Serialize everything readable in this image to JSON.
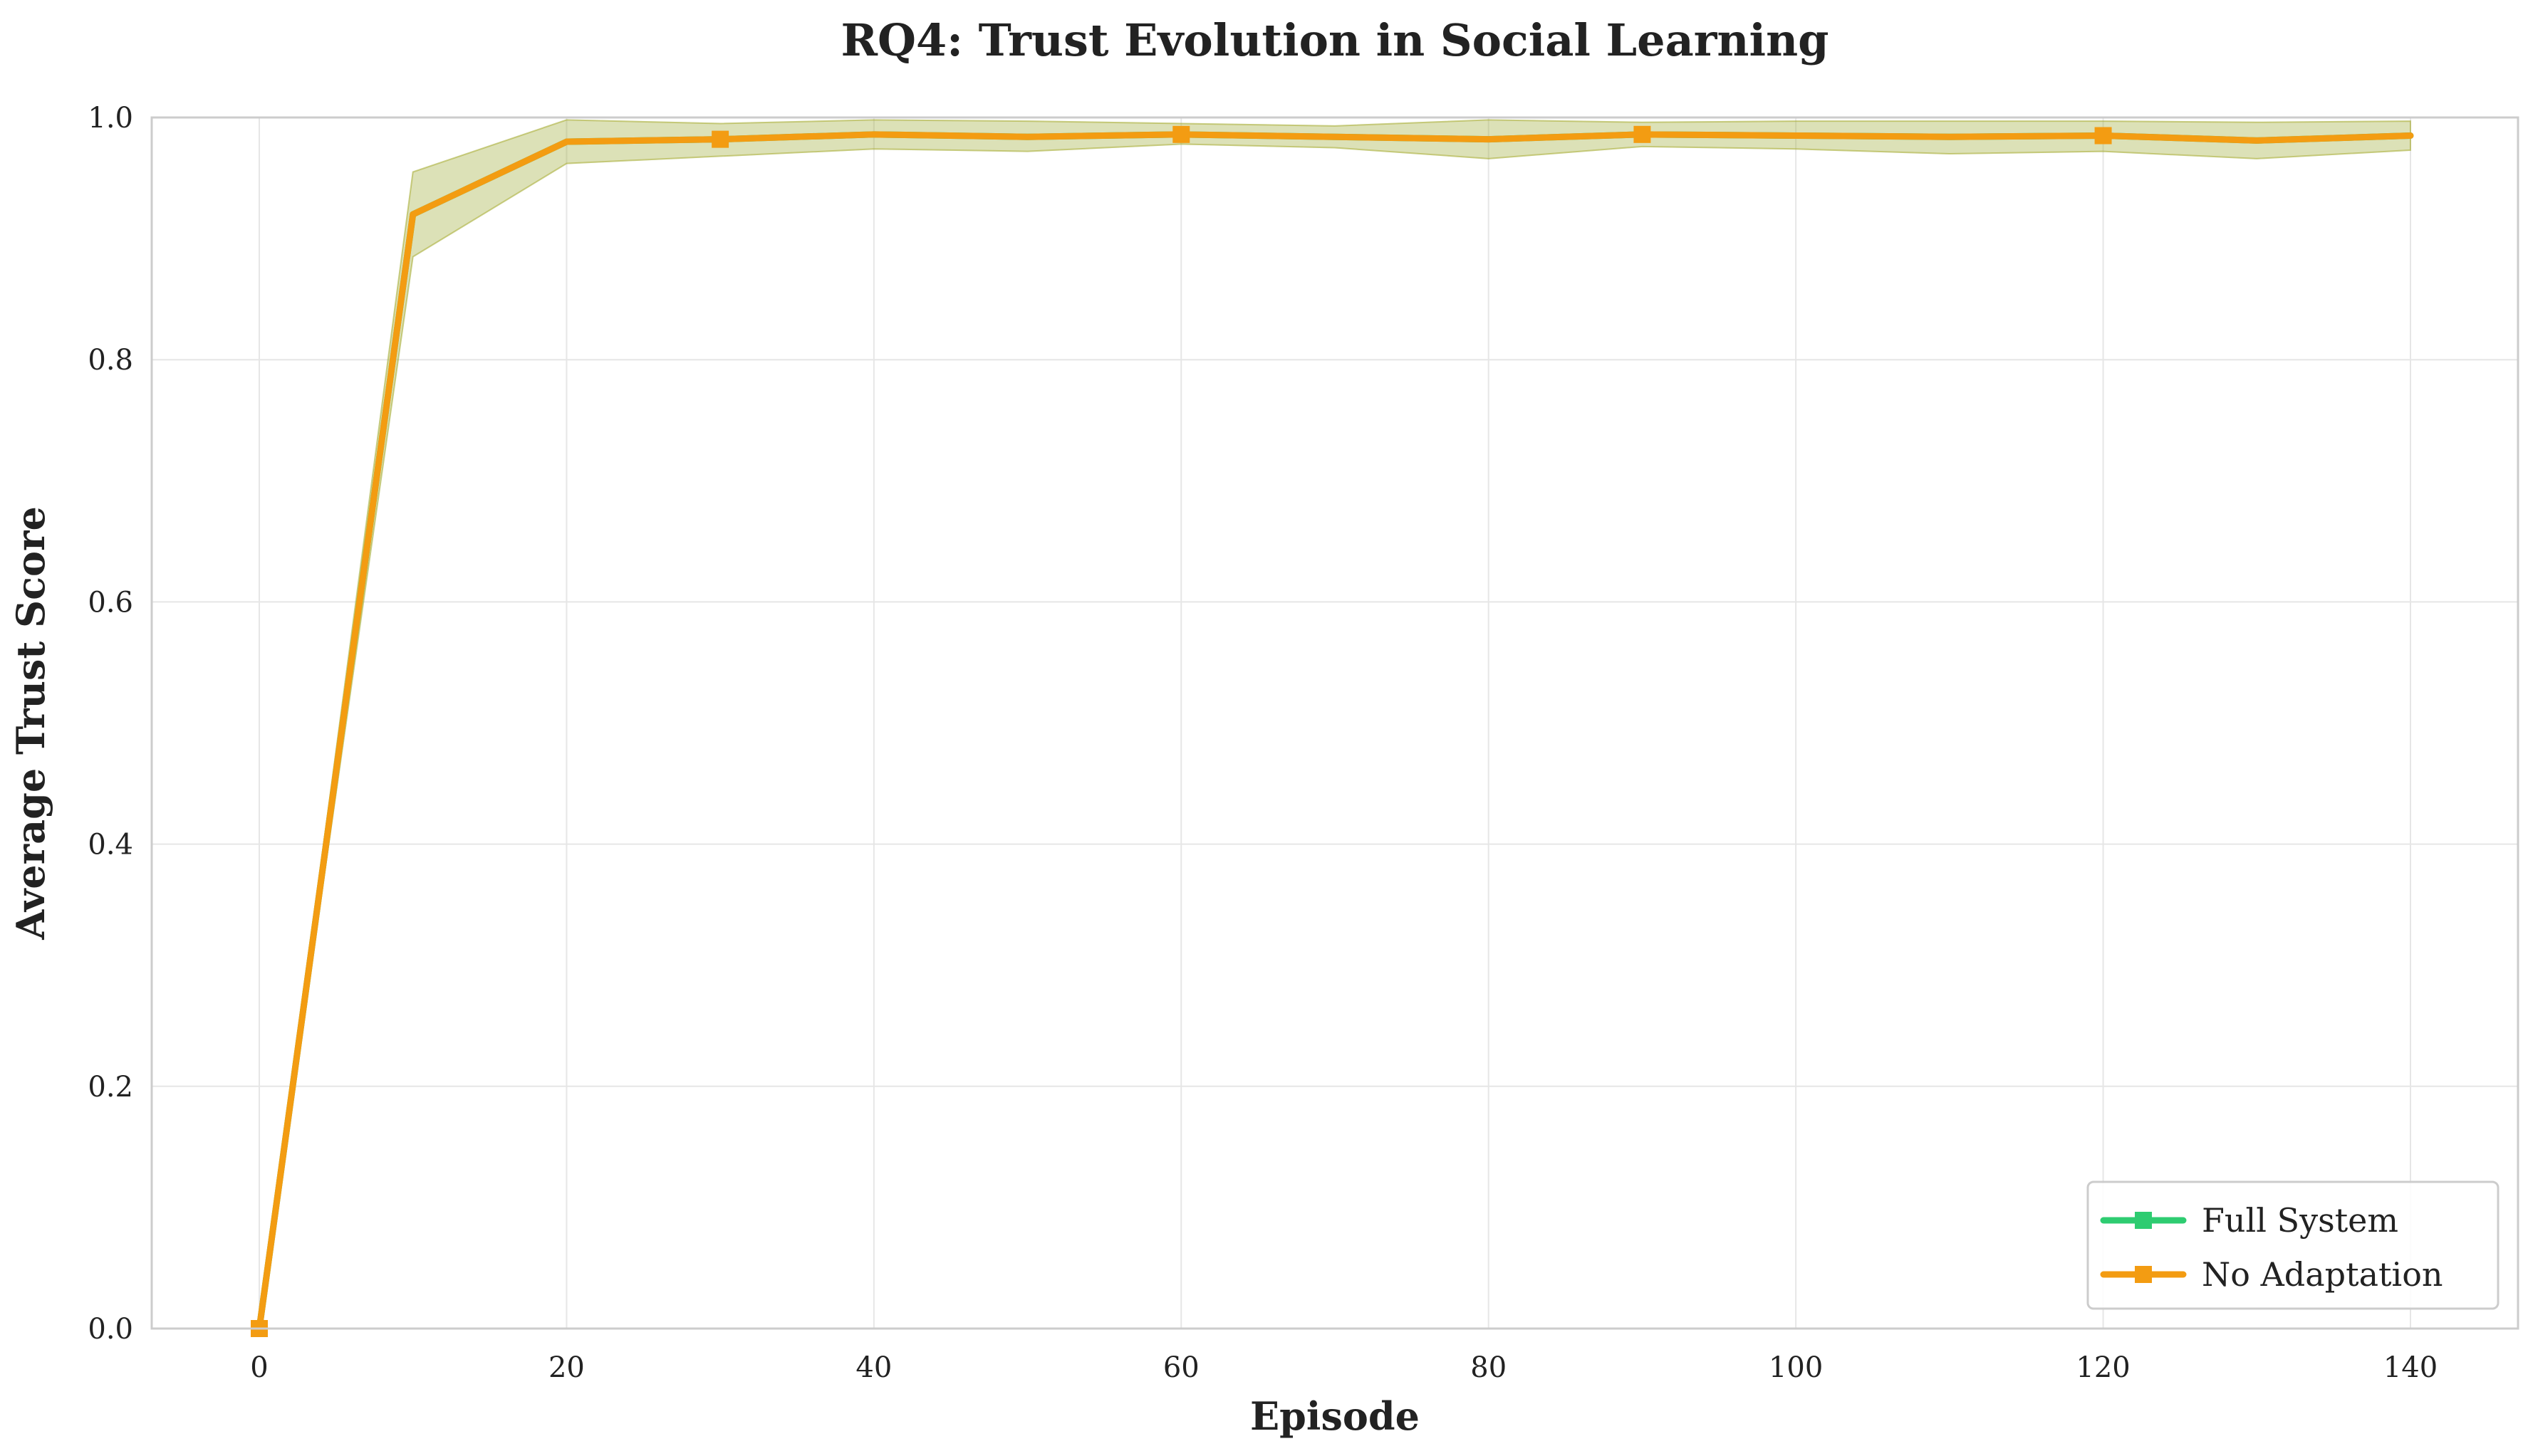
{
  "chart_data": {
    "type": "line",
    "title": "RQ4: Trust Evolution in Social Learning",
    "xlabel": "Episode",
    "ylabel": "Average Trust Score",
    "xlim": [
      -7,
      147
    ],
    "ylim": [
      0,
      1.0
    ],
    "xticks": [
      0,
      20,
      40,
      60,
      80,
      100,
      120,
      140
    ],
    "yticks": [
      0.0,
      0.2,
      0.4,
      0.6,
      0.8,
      1.0
    ],
    "grid": true,
    "legend_position": "bottom-right",
    "x": [
      0,
      10,
      20,
      30,
      40,
      50,
      60,
      70,
      80,
      90,
      100,
      110,
      120,
      130,
      140
    ],
    "series": [
      {
        "name": "Full System",
        "color": "#2ecc71",
        "marker": "square",
        "values": [
          0.0,
          0.92,
          0.98,
          0.982,
          0.986,
          0.984,
          0.986,
          0.984,
          0.982,
          0.986,
          0.985,
          0.984,
          0.985,
          0.981,
          0.985
        ],
        "band_low": [
          0.0,
          0.885,
          0.962,
          0.968,
          0.974,
          0.972,
          0.978,
          0.975,
          0.966,
          0.976,
          0.974,
          0.97,
          0.972,
          0.966,
          0.973
        ],
        "band_high": [
          0.0,
          0.955,
          0.998,
          0.995,
          0.998,
          0.997,
          0.995,
          0.993,
          0.998,
          0.996,
          0.997,
          0.997,
          0.997,
          0.996,
          0.997
        ]
      },
      {
        "name": "No Adaptation",
        "color": "#f39c12",
        "marker": "square",
        "values": [
          0.0,
          0.92,
          0.98,
          0.982,
          0.986,
          0.984,
          0.986,
          0.984,
          0.982,
          0.986,
          0.985,
          0.984,
          0.985,
          0.981,
          0.985
        ],
        "band_low": [
          0.0,
          0.885,
          0.962,
          0.968,
          0.974,
          0.972,
          0.978,
          0.975,
          0.966,
          0.976,
          0.974,
          0.97,
          0.972,
          0.966,
          0.973
        ],
        "band_high": [
          0.0,
          0.955,
          0.998,
          0.995,
          0.998,
          0.997,
          0.995,
          0.993,
          0.998,
          0.996,
          0.997,
          0.997,
          0.997,
          0.996,
          0.997
        ],
        "marker_x": [
          0,
          30,
          60,
          90,
          120
        ]
      }
    ]
  }
}
